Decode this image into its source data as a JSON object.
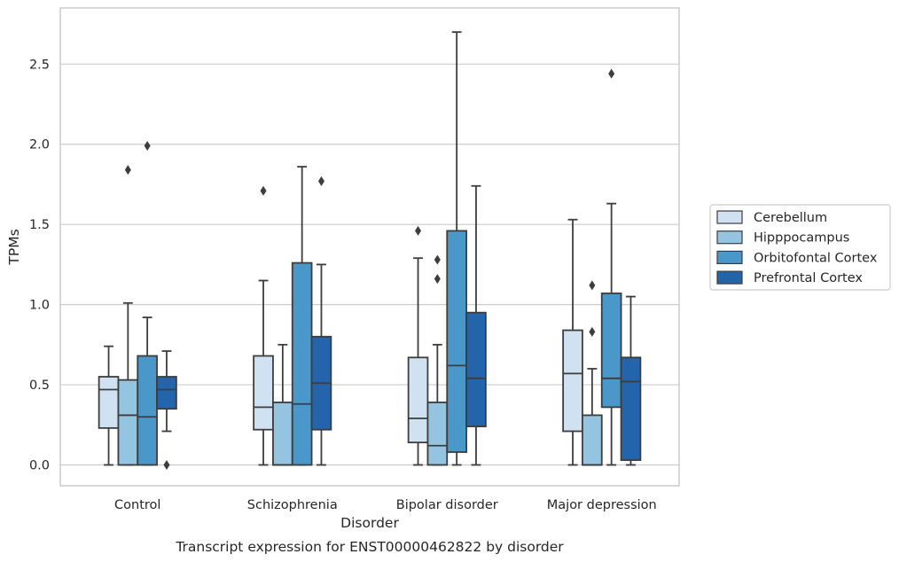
{
  "chart_data": {
    "type": "boxplot",
    "xlabel": "Disorder",
    "ylabel": "TPMs",
    "caption": "Transcript expression for ENST00000462822 by disorder",
    "ylim": [
      -0.13,
      2.85
    ],
    "yticks": [
      "0.0",
      "0.5",
      "1.0",
      "1.5",
      "2.0",
      "2.5"
    ],
    "ytick_values": [
      0.0,
      0.5,
      1.0,
      1.5,
      2.0,
      2.5
    ],
    "grid": "horizontal",
    "legend_position": "outside-right",
    "categories": [
      "Control",
      "Schizophrenia",
      "Bipolar disorder",
      "Major depression"
    ],
    "series": [
      {
        "name": "Cerebellum",
        "color": "#d0e1f2",
        "boxes": [
          {
            "whislo": 0.0,
            "q1": 0.23,
            "med": 0.47,
            "q3": 0.55,
            "whishi": 0.74,
            "fliers": []
          },
          {
            "whislo": 0.0,
            "q1": 0.22,
            "med": 0.36,
            "q3": 0.68,
            "whishi": 1.15,
            "fliers": [
              1.71
            ]
          },
          {
            "whislo": 0.0,
            "q1": 0.14,
            "med": 0.29,
            "q3": 0.67,
            "whishi": 1.29,
            "fliers": [
              1.46
            ]
          },
          {
            "whislo": 0.0,
            "q1": 0.21,
            "med": 0.57,
            "q3": 0.84,
            "whishi": 1.53,
            "fliers": []
          }
        ]
      },
      {
        "name": "Hipppocampus",
        "color": "#94c4df",
        "boxes": [
          {
            "whislo": 0.0,
            "q1": 0.0,
            "med": 0.31,
            "q3": 0.53,
            "whishi": 1.01,
            "fliers": [
              1.84
            ]
          },
          {
            "whislo": 0.0,
            "q1": 0.0,
            "med": 0.0,
            "q3": 0.39,
            "whishi": 0.75,
            "fliers": []
          },
          {
            "whislo": 0.0,
            "q1": 0.0,
            "med": 0.12,
            "q3": 0.39,
            "whishi": 0.75,
            "fliers": [
              1.16,
              1.28
            ]
          },
          {
            "whislo": 0.0,
            "q1": 0.0,
            "med": 0.0,
            "q3": 0.31,
            "whishi": 0.6,
            "fliers": [
              0.83,
              1.12
            ]
          }
        ]
      },
      {
        "name": "Orbitofontal Cortex",
        "color": "#4a98c9",
        "boxes": [
          {
            "whislo": 0.0,
            "q1": 0.0,
            "med": 0.3,
            "q3": 0.68,
            "whishi": 0.92,
            "fliers": [
              1.99
            ]
          },
          {
            "whislo": 0.0,
            "q1": 0.0,
            "med": 0.38,
            "q3": 1.26,
            "whishi": 1.86,
            "fliers": []
          },
          {
            "whislo": 0.0,
            "q1": 0.08,
            "med": 0.62,
            "q3": 1.46,
            "whishi": 2.7,
            "fliers": []
          },
          {
            "whislo": 0.0,
            "q1": 0.36,
            "med": 0.54,
            "q3": 1.07,
            "whishi": 1.63,
            "fliers": [
              2.44
            ]
          }
        ]
      },
      {
        "name": "Prefrontal Cortex",
        "color": "#2364aa",
        "boxes": [
          {
            "whislo": 0.21,
            "q1": 0.35,
            "med": 0.47,
            "q3": 0.55,
            "whishi": 0.71,
            "fliers": [
              0.0
            ]
          },
          {
            "whislo": 0.0,
            "q1": 0.22,
            "med": 0.51,
            "q3": 0.8,
            "whishi": 1.25,
            "fliers": [
              1.77
            ]
          },
          {
            "whislo": 0.0,
            "q1": 0.24,
            "med": 0.54,
            "q3": 0.95,
            "whishi": 1.74,
            "fliers": []
          },
          {
            "whislo": 0.0,
            "q1": 0.03,
            "med": 0.52,
            "q3": 0.67,
            "whishi": 1.05,
            "fliers": []
          }
        ]
      }
    ]
  }
}
